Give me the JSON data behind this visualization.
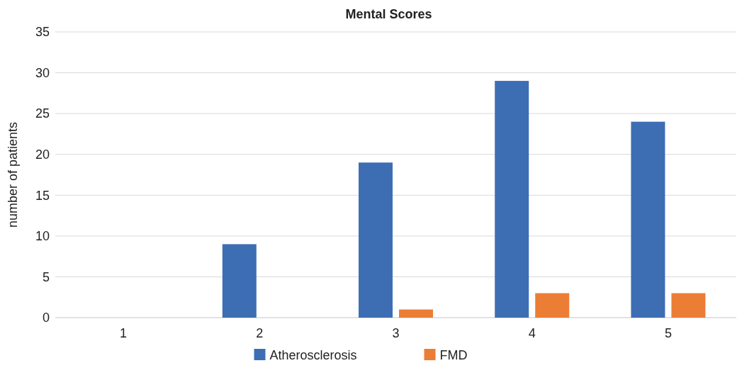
{
  "chart_data": {
    "type": "bar",
    "title": "Mental Scores",
    "ylabel": "number of patients",
    "categories": [
      "1",
      "2",
      "3",
      "4",
      "5"
    ],
    "series": [
      {
        "name": "Atherosclerosis",
        "color": "#3d6eb4",
        "values": [
          0,
          9,
          19,
          29,
          24
        ]
      },
      {
        "name": "FMD",
        "color": "#ec7d35",
        "values": [
          0,
          0,
          1,
          3,
          3
        ]
      }
    ],
    "ylim": [
      0,
      35
    ],
    "yticks": [
      0,
      5,
      10,
      15,
      20,
      25,
      30,
      35
    ],
    "grid": "y",
    "legend": "bottom"
  }
}
